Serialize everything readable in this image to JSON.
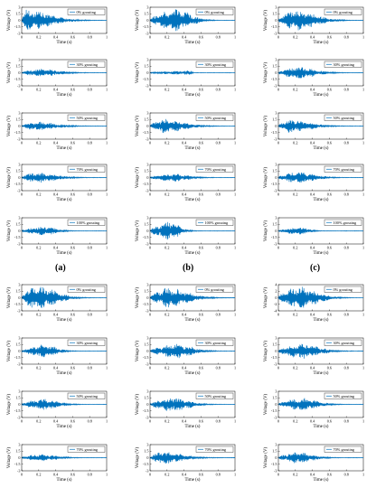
{
  "figure": {
    "panel_labels": [
      "(a)",
      "(b)",
      "(c)"
    ],
    "ylabel": "Voltage (V)",
    "xlabel": "Time (s)",
    "line_color": "#0072BD"
  },
  "chart_data": [
    {
      "type": "line",
      "legend": "0% grouting",
      "group": "a",
      "col": 0,
      "xlim": [
        0,
        1
      ],
      "ylim": [
        -3,
        3
      ],
      "xticks": [
        0,
        0.2,
        0.4,
        0.6,
        0.8,
        1
      ],
      "yticks": [
        -3,
        -1.5,
        0,
        1.5,
        3
      ],
      "ytick_labels": [
        "-3",
        "-1.5",
        "0",
        "1.5",
        "3"
      ],
      "envelope": {
        "peak_time": 0.05,
        "peak_amplitude": 2.6,
        "duration": 0.7
      }
    },
    {
      "type": "line",
      "legend": "0% grouting",
      "group": "a",
      "col": 1,
      "xlim": [
        0,
        1
      ],
      "ylim": [
        -3,
        3
      ],
      "xticks": [
        0,
        0.2,
        0.4,
        0.6,
        0.8,
        1
      ],
      "yticks": [
        -3,
        -1.5,
        0,
        1.5,
        3
      ],
      "ytick_labels": [
        "-3",
        "-1.5",
        "0",
        "1.5",
        "3"
      ],
      "envelope": {
        "peak_time": 0.28,
        "peak_amplitude": 2.8,
        "duration": 0.7
      }
    },
    {
      "type": "line",
      "legend": "0% grouting",
      "group": "a",
      "col": 2,
      "xlim": [
        0,
        1
      ],
      "ylim": [
        -3,
        3
      ],
      "xticks": [
        0,
        0.2,
        0.4,
        0.6,
        0.8,
        1
      ],
      "yticks": [
        -3,
        -1.5,
        0,
        1.5,
        3
      ],
      "ytick_labels": [
        "-3",
        "-1.5",
        "0",
        "1.5",
        "3"
      ],
      "envelope": {
        "peak_time": 0.18,
        "peak_amplitude": 2.5,
        "duration": 0.75
      }
    },
    {
      "type": "line",
      "legend": "30% grouting",
      "group": "a",
      "col": 0,
      "xlim": [
        0,
        1
      ],
      "ylim": [
        -3,
        3
      ],
      "xticks": [
        0,
        0.2,
        0.4,
        0.6,
        0.8,
        1
      ],
      "yticks": [
        -3,
        -1.5,
        0,
        1.5,
        3
      ],
      "ytick_labels": [
        "-3",
        "-1.5",
        "0",
        "1.5",
        "3"
      ],
      "envelope": {
        "peak_time": 0.2,
        "peak_amplitude": 0.9,
        "duration": 0.7
      }
    },
    {
      "type": "line",
      "legend": "30% grouting",
      "group": "a",
      "col": 1,
      "xlim": [
        0,
        1
      ],
      "ylim": [
        -3,
        3
      ],
      "xticks": [
        0,
        0.2,
        0.4,
        0.6,
        0.8,
        1
      ],
      "yticks": [
        -3,
        -1.5,
        0,
        1.5,
        3
      ],
      "ytick_labels": [
        "-3",
        "-1.5",
        "0",
        "1.5",
        "3"
      ],
      "envelope": {
        "peak_time": 0.5,
        "peak_amplitude": 0.5,
        "duration": 0.3
      }
    },
    {
      "type": "line",
      "legend": "30% grouting",
      "group": "a",
      "col": 2,
      "xlim": [
        0,
        1
      ],
      "ylim": [
        -3,
        3
      ],
      "xticks": [
        0,
        0.2,
        0.4,
        0.6,
        0.8,
        1
      ],
      "yticks": [
        -3,
        -1.5,
        0,
        1.5,
        3
      ],
      "ytick_labels": [
        "-3",
        "-1.5",
        "0",
        "1.5",
        "3"
      ],
      "envelope": {
        "peak_time": 0.2,
        "peak_amplitude": 1.4,
        "duration": 0.7
      }
    },
    {
      "type": "line",
      "legend": "50% grouting",
      "group": "a",
      "col": 0,
      "xlim": [
        0,
        1
      ],
      "ylim": [
        -3,
        3
      ],
      "xticks": [
        0,
        0.2,
        0.4,
        0.6,
        0.8,
        1
      ],
      "yticks": [
        -3,
        -1.5,
        0,
        1.5,
        3
      ],
      "ytick_labels": [
        "-3",
        "-1.5",
        "0",
        "1.5",
        "3"
      ],
      "envelope": {
        "peak_time": 0.15,
        "peak_amplitude": 1.0,
        "duration": 0.7
      }
    },
    {
      "type": "line",
      "legend": "50% grouting",
      "group": "a",
      "col": 1,
      "xlim": [
        0,
        1
      ],
      "ylim": [
        -3,
        3
      ],
      "xticks": [
        0,
        0.2,
        0.4,
        0.6,
        0.8,
        1
      ],
      "yticks": [
        -3,
        -1.5,
        0,
        1.5,
        3
      ],
      "ytick_labels": [
        "-3",
        "-1.5",
        "0",
        "1.5",
        "3"
      ],
      "envelope": {
        "peak_time": 0.15,
        "peak_amplitude": 1.6,
        "duration": 0.7
      }
    },
    {
      "type": "line",
      "legend": "50% grouting",
      "group": "a",
      "col": 2,
      "xlim": [
        0,
        1
      ],
      "ylim": [
        -3,
        3
      ],
      "xticks": [
        0,
        0.2,
        0.4,
        0.6,
        0.8,
        1
      ],
      "yticks": [
        -3,
        -1.5,
        0,
        1.5,
        3
      ],
      "ytick_labels": [
        "-3",
        "-1.5",
        "0",
        "1.5",
        "3"
      ],
      "envelope": {
        "peak_time": 0.12,
        "peak_amplitude": 1.5,
        "duration": 0.7
      }
    },
    {
      "type": "line",
      "legend": "70% grouting",
      "group": "a",
      "col": 0,
      "xlim": [
        0,
        1
      ],
      "ylim": [
        -3,
        3
      ],
      "xticks": [
        0,
        0.2,
        0.4,
        0.6,
        0.8,
        1
      ],
      "yticks": [
        -3,
        -1.5,
        0,
        1.5,
        3
      ],
      "ytick_labels": [
        "-3",
        "-1.5",
        "0",
        "1.5",
        "3"
      ],
      "envelope": {
        "peak_time": 0.15,
        "peak_amplitude": 1.2,
        "duration": 0.7
      }
    },
    {
      "type": "line",
      "legend": "70% grouting",
      "group": "a",
      "col": 1,
      "xlim": [
        0,
        1
      ],
      "ylim": [
        -3,
        3
      ],
      "xticks": [
        0,
        0.2,
        0.4,
        0.6,
        0.8,
        1
      ],
      "yticks": [
        -3,
        -1.5,
        0,
        1.5,
        3
      ],
      "ytick_labels": [
        "-3",
        "-1.5",
        "0",
        "1.5",
        "3"
      ],
      "envelope": {
        "peak_time": 0.25,
        "peak_amplitude": 0.9,
        "duration": 0.7
      }
    },
    {
      "type": "line",
      "legend": "70% grouting",
      "group": "a",
      "col": 2,
      "xlim": [
        0,
        1
      ],
      "ylim": [
        -3,
        3
      ],
      "xticks": [
        0,
        0.2,
        0.4,
        0.6,
        0.8,
        1
      ],
      "yticks": [
        -3,
        -1.5,
        0,
        1.5,
        3
      ],
      "ytick_labels": [
        "-3",
        "-1.5",
        "0",
        "1.5",
        "3"
      ],
      "envelope": {
        "peak_time": 0.2,
        "peak_amplitude": 1.3,
        "duration": 0.7
      }
    },
    {
      "type": "line",
      "legend": "100% grouting",
      "group": "a",
      "col": 0,
      "xlim": [
        0,
        1
      ],
      "ylim": [
        -3,
        3
      ],
      "xticks": [
        0,
        0.2,
        0.4,
        0.6,
        0.8,
        1
      ],
      "yticks": [
        -3,
        -1.5,
        0,
        1.5,
        3
      ],
      "ytick_labels": [
        "-3",
        "-1.5",
        "0",
        "1.5",
        "3"
      ],
      "envelope": {
        "peak_time": 0.25,
        "peak_amplitude": 1.0,
        "duration": 0.6
      }
    },
    {
      "type": "line",
      "legend": "100% grouting",
      "group": "a",
      "col": 1,
      "xlim": [
        0,
        1
      ],
      "ylim": [
        -3,
        3
      ],
      "xticks": [
        0,
        0.2,
        0.4,
        0.6,
        0.8,
        1
      ],
      "yticks": [
        -3,
        -1.5,
        0,
        1.5,
        3
      ],
      "ytick_labels": [
        "-3",
        "-1.5",
        "0",
        "1.5",
        "3"
      ],
      "envelope": {
        "peak_time": 0.22,
        "peak_amplitude": 2.2,
        "duration": 0.5
      }
    },
    {
      "type": "line",
      "legend": "100% grouting",
      "group": "a",
      "col": 2,
      "xlim": [
        0,
        1
      ],
      "ylim": [
        -3,
        3
      ],
      "xticks": [
        0,
        0.2,
        0.4,
        0.6,
        0.8,
        1
      ],
      "yticks": [
        -3,
        -1.5,
        0,
        1.5,
        3
      ],
      "ytick_labels": [
        "-3",
        "-1.5",
        "0",
        "1.5",
        "3"
      ],
      "envelope": {
        "peak_time": 0.25,
        "peak_amplitude": 0.9,
        "duration": 0.5
      }
    },
    {
      "type": "line",
      "legend": "0% grouting",
      "group": "b",
      "col": 0,
      "xlim": [
        0,
        1
      ],
      "ylim": [
        -3,
        3
      ],
      "xticks": [
        0,
        0.2,
        0.4,
        0.6,
        0.8,
        1
      ],
      "yticks": [
        -3,
        -1.5,
        0,
        1.5,
        3
      ],
      "ytick_labels": [
        "-3",
        "-1.5",
        "0",
        "1.5",
        "3"
      ],
      "envelope": {
        "peak_time": 0.15,
        "peak_amplitude": 2.9,
        "duration": 0.7
      }
    },
    {
      "type": "line",
      "legend": "0% grouting",
      "group": "b",
      "col": 1,
      "xlim": [
        0,
        1
      ],
      "ylim": [
        -3,
        3
      ],
      "xticks": [
        0,
        0.2,
        0.4,
        0.6,
        0.8,
        1
      ],
      "yticks": [
        -3,
        -1.5,
        0,
        1.5,
        3
      ],
      "ytick_labels": [
        "-3",
        "-1.5",
        "0",
        "1.5",
        "3"
      ],
      "envelope": {
        "peak_time": 0.2,
        "peak_amplitude": 2.4,
        "duration": 0.75
      }
    },
    {
      "type": "line",
      "legend": "0% grouting",
      "group": "b",
      "col": 2,
      "xlim": [
        0,
        1
      ],
      "ylim": [
        -4,
        4
      ],
      "xticks": [
        0,
        0.2,
        0.4,
        0.6,
        0.8,
        1
      ],
      "yticks": [
        -4,
        -2,
        0,
        2,
        4
      ],
      "ytick_labels": [
        "-4",
        "-2",
        "0",
        "2",
        "4"
      ],
      "envelope": {
        "peak_time": 0.2,
        "peak_amplitude": 3.6,
        "duration": 0.75
      }
    },
    {
      "type": "line",
      "legend": "30% grouting",
      "group": "b",
      "col": 0,
      "xlim": [
        0,
        1
      ],
      "ylim": [
        -3,
        3
      ],
      "xticks": [
        0,
        0.2,
        0.4,
        0.6,
        0.8,
        1
      ],
      "yticks": [
        -3,
        -1.5,
        0,
        1.5,
        3
      ],
      "ytick_labels": [
        "-3",
        "-1.5",
        "0",
        "1.5",
        "3"
      ],
      "envelope": {
        "peak_time": 0.25,
        "peak_amplitude": 1.5,
        "duration": 0.6
      }
    },
    {
      "type": "line",
      "legend": "30% grouting",
      "group": "b",
      "col": 1,
      "xlim": [
        0,
        1
      ],
      "ylim": [
        -3,
        3
      ],
      "xticks": [
        0,
        0.2,
        0.4,
        0.6,
        0.8,
        1
      ],
      "yticks": [
        -3,
        -1.5,
        0,
        1.5,
        3
      ],
      "ytick_labels": [
        "-3",
        "-1.5",
        "0",
        "1.5",
        "3"
      ],
      "envelope": {
        "peak_time": 0.3,
        "peak_amplitude": 1.7,
        "duration": 0.75
      }
    },
    {
      "type": "line",
      "legend": "30% grouting",
      "group": "b",
      "col": 2,
      "xlim": [
        0,
        1
      ],
      "ylim": [
        -3,
        3
      ],
      "xticks": [
        0,
        0.2,
        0.4,
        0.6,
        0.8,
        1
      ],
      "yticks": [
        -3,
        -1.5,
        0,
        1.5,
        3
      ],
      "ytick_labels": [
        "-3",
        "-1.5",
        "0",
        "1.5",
        "3"
      ],
      "envelope": {
        "peak_time": 0.25,
        "peak_amplitude": 1.8,
        "duration": 0.75
      }
    },
    {
      "type": "line",
      "legend": "50% grouting",
      "group": "b",
      "col": 0,
      "xlim": [
        0,
        1
      ],
      "ylim": [
        -3,
        3
      ],
      "xticks": [
        0,
        0.2,
        0.4,
        0.6,
        0.8,
        1
      ],
      "yticks": [
        -3,
        -1.5,
        0,
        1.5,
        3
      ],
      "ytick_labels": [
        "-3",
        "-1.5",
        "0",
        "1.5",
        "3"
      ],
      "envelope": {
        "peak_time": 0.25,
        "peak_amplitude": 1.3,
        "duration": 0.65
      }
    },
    {
      "type": "line",
      "legend": "50% grouting",
      "group": "b",
      "col": 1,
      "xlim": [
        0,
        1
      ],
      "ylim": [
        -3,
        3
      ],
      "xticks": [
        0,
        0.2,
        0.4,
        0.6,
        0.8,
        1
      ],
      "yticks": [
        -3,
        -1.5,
        0,
        1.5,
        3
      ],
      "ytick_labels": [
        "-3",
        "-1.5",
        "0",
        "1.5",
        "3"
      ],
      "envelope": {
        "peak_time": 0.25,
        "peak_amplitude": 1.7,
        "duration": 0.7
      }
    },
    {
      "type": "line",
      "legend": "50% grouting",
      "group": "b",
      "col": 2,
      "xlim": [
        0,
        1
      ],
      "ylim": [
        -3,
        3
      ],
      "xticks": [
        0,
        0.2,
        0.4,
        0.6,
        0.8,
        1
      ],
      "yticks": [
        -3,
        -1.5,
        0,
        1.5,
        3
      ],
      "ytick_labels": [
        "-3",
        "-1.5",
        "0",
        "1.5",
        "3"
      ],
      "envelope": {
        "peak_time": 0.25,
        "peak_amplitude": 1.5,
        "duration": 0.7
      }
    },
    {
      "type": "line",
      "legend": "70% grouting",
      "group": "b",
      "col": 0,
      "xlim": [
        0,
        1
      ],
      "ylim": [
        -3,
        3
      ],
      "xticks": [
        0,
        0.2,
        0.4,
        0.6,
        0.8,
        1
      ],
      "yticks": [
        -3,
        -1.5,
        0,
        1.5,
        3
      ],
      "ytick_labels": [
        "-3",
        "-1.5",
        "0",
        "1.5",
        "3"
      ],
      "envelope": {
        "peak_time": 0.2,
        "peak_amplitude": 0.8,
        "duration": 0.65
      }
    },
    {
      "type": "line",
      "legend": "70% grouting",
      "group": "b",
      "col": 1,
      "xlim": [
        0,
        1
      ],
      "ylim": [
        -3,
        3
      ],
      "xticks": [
        0,
        0.2,
        0.4,
        0.6,
        0.8,
        1
      ],
      "yticks": [
        -3,
        -1.5,
        0,
        1.5,
        3
      ],
      "ytick_labels": [
        "-3",
        "-1.5",
        "0",
        "1.5",
        "3"
      ],
      "envelope": {
        "peak_time": 0.12,
        "peak_amplitude": 1.4,
        "duration": 0.7
      }
    },
    {
      "type": "line",
      "legend": "70% grouting",
      "group": "b",
      "col": 2,
      "xlim": [
        0,
        1
      ],
      "ylim": [
        -3,
        3
      ],
      "xticks": [
        0,
        0.2,
        0.4,
        0.6,
        0.8,
        1
      ],
      "yticks": [
        -3,
        -1.5,
        0,
        1.5,
        3
      ],
      "ytick_labels": [
        "-3",
        "-1.5",
        "0",
        "1.5",
        "3"
      ],
      "envelope": {
        "peak_time": 0.2,
        "peak_amplitude": 1.3,
        "duration": 0.65
      }
    }
  ]
}
